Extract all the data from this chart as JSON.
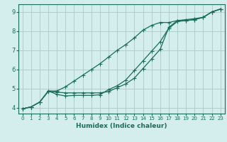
{
  "xlabel": "Humidex (Indice chaleur)",
  "bg_color": "#d4eeee",
  "grid_color": "#b0cccc",
  "line_color": "#1a6b5a",
  "xlim": [
    -0.5,
    23.5
  ],
  "ylim": [
    3.7,
    9.4
  ],
  "xticks": [
    0,
    1,
    2,
    3,
    4,
    5,
    6,
    7,
    8,
    9,
    10,
    11,
    12,
    13,
    14,
    15,
    16,
    17,
    18,
    19,
    20,
    21,
    22,
    23
  ],
  "yticks": [
    4,
    5,
    6,
    7,
    8,
    9
  ],
  "line1_x": [
    0,
    1,
    2,
    3,
    4,
    5,
    6,
    7,
    8,
    9,
    10,
    11,
    12,
    13,
    14,
    15,
    16,
    17,
    18,
    19,
    20,
    21,
    22,
    23
  ],
  "line1_y": [
    3.95,
    4.05,
    4.3,
    4.85,
    4.82,
    4.78,
    4.78,
    4.78,
    4.78,
    4.78,
    4.85,
    5.05,
    5.25,
    5.55,
    6.05,
    6.55,
    7.05,
    8.2,
    8.55,
    8.55,
    8.6,
    8.72,
    9.0,
    9.15
  ],
  "line2_x": [
    0,
    1,
    2,
    3,
    4,
    5,
    6,
    7,
    8,
    9,
    10,
    11,
    12,
    13,
    14,
    15,
    16,
    17,
    18,
    19,
    20,
    21,
    22,
    23
  ],
  "line2_y": [
    3.95,
    4.05,
    4.3,
    4.88,
    4.7,
    4.62,
    4.65,
    4.65,
    4.65,
    4.68,
    4.95,
    5.15,
    5.45,
    5.95,
    6.45,
    6.95,
    7.45,
    8.15,
    8.5,
    8.55,
    8.6,
    8.72,
    9.0,
    9.15
  ],
  "line3_x": [
    0,
    1,
    2,
    3,
    4,
    5,
    6,
    7,
    8,
    9,
    10,
    11,
    12,
    13,
    14,
    15,
    16,
    17,
    18,
    19,
    20,
    21,
    22,
    23
  ],
  "line3_y": [
    3.95,
    4.05,
    4.3,
    4.88,
    4.88,
    5.1,
    5.4,
    5.7,
    6.0,
    6.3,
    6.65,
    7.0,
    7.3,
    7.65,
    8.05,
    8.3,
    8.45,
    8.45,
    8.55,
    8.6,
    8.65,
    8.72,
    9.0,
    9.15
  ]
}
